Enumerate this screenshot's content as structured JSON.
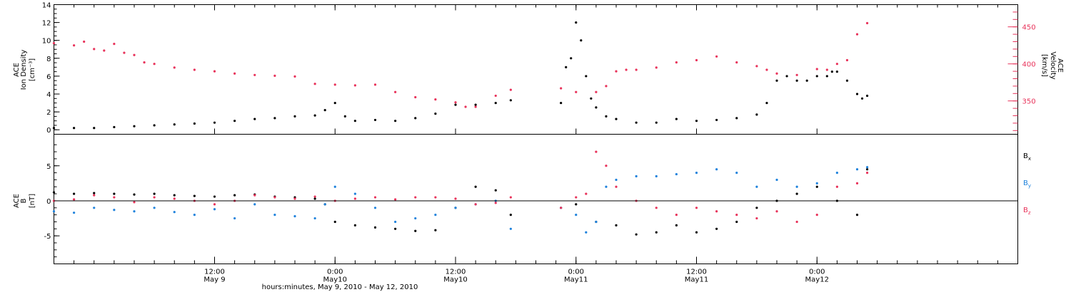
{
  "figure": {
    "xlabel": "hours:minutes, May  9, 2010 - May 12, 2010",
    "x_range_hours": [
      0,
      96
    ],
    "time_ticks": [
      {
        "hours": 16,
        "line1": "12:00",
        "line2": "May 9"
      },
      {
        "hours": 28,
        "line1": "0:00",
        "line2": "May10"
      },
      {
        "hours": 40,
        "line1": "12:00",
        "line2": "May10"
      },
      {
        "hours": 52,
        "line1": "0:00",
        "line2": "May11"
      },
      {
        "hours": 64,
        "line1": "12:00",
        "line2": "May11"
      },
      {
        "hours": 76,
        "line1": "0:00",
        "line2": "May12"
      }
    ],
    "colors": {
      "black": "#000000",
      "pink": "#e8325a",
      "blue": "#1e82dc"
    }
  },
  "chart_data": [
    {
      "type": "scatter",
      "panel": "top",
      "left_axis": {
        "label_lines": [
          "ACE",
          "Ion Density",
          "[cm⁻³]"
        ],
        "range": [
          -0.5,
          14
        ],
        "ticks": [
          0,
          2,
          4,
          6,
          8,
          10,
          12,
          14
        ]
      },
      "right_axis": {
        "label_lines": [
          "ACE",
          "Velocity",
          "[km/s]"
        ],
        "range": [
          305,
          480
        ],
        "ticks": [
          350,
          400,
          450
        ],
        "color": "#e8325a"
      },
      "series": [
        {
          "axis": "left",
          "color": "#000000",
          "x": [
            0,
            2,
            4,
            6,
            8,
            10,
            12,
            14,
            16,
            18,
            20,
            22,
            24,
            26,
            27,
            28,
            29,
            30,
            32,
            34,
            36,
            38,
            40,
            42,
            44,
            45.5,
            50.5,
            51,
            51.5,
            52,
            52.5,
            53,
            53.5,
            54,
            55,
            56,
            58,
            60,
            62,
            64,
            66,
            68,
            70,
            71,
            72,
            73,
            74,
            75,
            76,
            77,
            77.5,
            78,
            79,
            80,
            80.5,
            81
          ],
          "y": [
            0.2,
            0.2,
            0.2,
            0.3,
            0.4,
            0.5,
            0.6,
            0.7,
            0.8,
            1.0,
            1.2,
            1.3,
            1.5,
            1.6,
            2.2,
            3.0,
            1.5,
            1.0,
            1.1,
            1.0,
            1.3,
            1.8,
            2.8,
            2.8,
            3.0,
            3.3,
            3.0,
            7.0,
            8.0,
            12.0,
            10.0,
            6.0,
            3.5,
            2.5,
            1.5,
            1.2,
            0.8,
            0.8,
            1.2,
            1.0,
            1.1,
            1.3,
            1.7,
            3.0,
            5.5,
            6.0,
            5.5,
            5.5,
            6.0,
            6.0,
            6.5,
            6.5,
            5.5,
            4.0,
            3.5,
            3.8
          ]
        },
        {
          "axis": "right",
          "color": "#e8325a",
          "x": [
            0,
            2,
            3,
            4,
            5,
            6,
            7,
            8,
            9,
            10,
            12,
            14,
            16,
            18,
            20,
            22,
            24,
            26,
            28,
            30,
            32,
            34,
            36,
            38,
            40,
            41,
            42,
            44,
            45.5,
            50.5,
            52,
            54,
            55,
            56,
            57,
            58,
            60,
            62,
            64,
            66,
            68,
            70,
            71,
            72,
            74,
            76,
            77,
            78,
            79,
            80,
            81
          ],
          "y": [
            428,
            425,
            430,
            420,
            418,
            427,
            415,
            412,
            402,
            400,
            395,
            392,
            390,
            387,
            385,
            384,
            383,
            373,
            372,
            371,
            372,
            362,
            355,
            352,
            348,
            342,
            342,
            357,
            365,
            367,
            362,
            362,
            370,
            390,
            392,
            392,
            395,
            402,
            405,
            410,
            402,
            397,
            392,
            387,
            385,
            393,
            392,
            400,
            405,
            440,
            455
          ]
        }
      ]
    },
    {
      "type": "scatter",
      "panel": "bottom",
      "left_axis": {
        "label_lines": [
          "ACE",
          "B",
          "[nT]"
        ],
        "range": [
          -9,
          9.5
        ],
        "ticks": [
          -5,
          0,
          5
        ]
      },
      "zero_line": true,
      "series": [
        {
          "name": "Bx",
          "color": "#000000",
          "x": [
            0,
            2,
            4,
            6,
            8,
            10,
            12,
            14,
            16,
            18,
            20,
            22,
            24,
            26,
            27,
            28,
            30,
            32,
            34,
            36,
            38,
            40,
            42,
            44,
            45.5,
            50.5,
            52,
            54,
            56,
            58,
            60,
            62,
            64,
            66,
            68,
            70,
            72,
            74,
            76,
            78,
            80,
            81
          ],
          "y": [
            1.2,
            1.0,
            1.1,
            1.0,
            0.9,
            1.0,
            0.8,
            0.7,
            0.6,
            0.8,
            0.9,
            0.6,
            0.5,
            0.3,
            -0.5,
            -3.0,
            -3.5,
            -3.8,
            -4.0,
            -4.3,
            -4.2,
            -1.0,
            2.0,
            1.5,
            -2.0,
            -1.0,
            -0.5,
            -3.0,
            -3.5,
            -4.8,
            -4.5,
            -3.5,
            -4.5,
            -4.0,
            -3.0,
            -1.0,
            0.0,
            1.0,
            2.0,
            0.0,
            -2.0,
            4.5
          ]
        },
        {
          "name": "By",
          "color": "#1e82dc",
          "x": [
            0,
            2,
            4,
            6,
            8,
            10,
            12,
            14,
            16,
            18,
            20,
            22,
            24,
            26,
            27,
            28,
            30,
            32,
            34,
            36,
            38,
            40,
            42,
            44,
            45.5,
            50.5,
            52,
            53,
            54,
            55,
            56,
            58,
            60,
            62,
            64,
            66,
            68,
            70,
            72,
            74,
            76,
            78,
            80,
            81
          ],
          "y": [
            -1.5,
            -1.7,
            -1.0,
            -1.3,
            -1.5,
            -1.0,
            -1.6,
            -2.0,
            -1.2,
            -2.5,
            -0.5,
            -2.0,
            -2.2,
            -2.5,
            -0.5,
            2.0,
            1.0,
            -1.0,
            -3.0,
            -2.5,
            -2.0,
            -1.0,
            -0.5,
            0.0,
            -4.0,
            -1.0,
            -2.0,
            -4.5,
            -3.0,
            2.0,
            3.0,
            3.5,
            3.5,
            3.8,
            4.0,
            4.5,
            4.0,
            2.0,
            3.0,
            2.0,
            2.5,
            4.0,
            4.5,
            4.8
          ]
        },
        {
          "name": "Bz",
          "color": "#e8325a",
          "x": [
            0,
            2,
            4,
            6,
            8,
            10,
            12,
            14,
            16,
            18,
            20,
            22,
            24,
            26,
            28,
            30,
            32,
            34,
            36,
            38,
            40,
            42,
            44,
            45.5,
            50.5,
            52,
            53,
            54,
            55,
            56,
            58,
            60,
            62,
            64,
            66,
            68,
            70,
            72,
            74,
            76,
            78,
            80,
            81
          ],
          "y": [
            0.0,
            0.2,
            0.8,
            0.5,
            -0.2,
            0.5,
            0.3,
            0.0,
            -0.5,
            0.0,
            0.8,
            0.5,
            0.3,
            0.6,
            0.0,
            0.3,
            0.5,
            0.2,
            0.5,
            0.5,
            0.3,
            -0.5,
            -0.3,
            0.5,
            -1.0,
            0.5,
            1.0,
            7.0,
            5.0,
            2.0,
            0.0,
            -1.0,
            -2.0,
            -1.0,
            -1.5,
            -2.0,
            -2.5,
            -1.5,
            -3.0,
            -2.0,
            2.0,
            2.5,
            4.0
          ]
        }
      ],
      "legend": [
        {
          "base": "B",
          "sub": "x",
          "color": "#000000"
        },
        {
          "base": "B",
          "sub": "y",
          "color": "#1e82dc"
        },
        {
          "base": "B",
          "sub": "z",
          "color": "#e8325a"
        }
      ]
    }
  ]
}
